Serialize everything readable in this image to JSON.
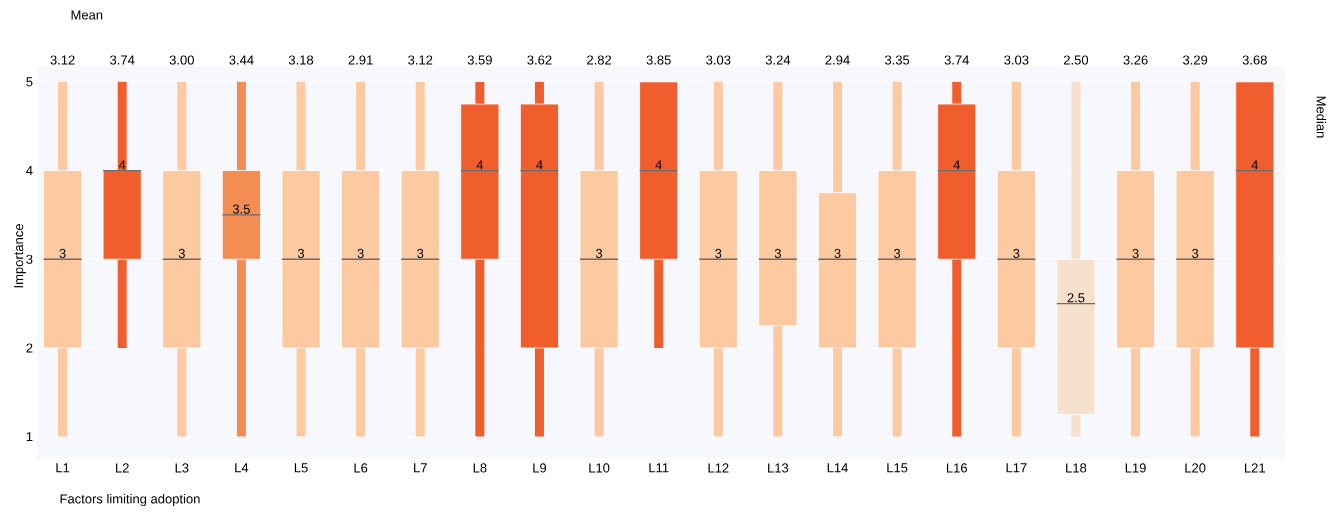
{
  "chart_data": {
    "type": "box",
    "xlabel": "Factors limiting adoption",
    "ylabel": "Importance",
    "annotations": [
      "Mean",
      "Median",
      {
        "text": "3",
        "x": "L1",
        "y": 3
      },
      {
        "text": "4",
        "x": "L2",
        "y": 4
      },
      {
        "text": "3",
        "x": "L3",
        "y": 3
      },
      {
        "text": "3.5",
        "x": "L4",
        "y": 3.5
      },
      {
        "text": "3",
        "x": "L5",
        "y": 3
      },
      {
        "text": "3",
        "x": "L6",
        "y": 3
      },
      {
        "text": "3",
        "x": "L7",
        "y": 3
      },
      {
        "text": "4",
        "x": "L8",
        "y": 4
      },
      {
        "text": "4",
        "x": "L9",
        "y": 4
      },
      {
        "text": "3",
        "x": "L10",
        "y": 3
      },
      {
        "text": "4",
        "x": "L11",
        "y": 4
      },
      {
        "text": "3",
        "x": "L12",
        "y": 3
      },
      {
        "text": "3",
        "x": "L13",
        "y": 3
      },
      {
        "text": "3",
        "x": "L14",
        "y": 3
      },
      {
        "text": "3",
        "x": "L15",
        "y": 3
      },
      {
        "text": "4",
        "x": "L16",
        "y": 4
      },
      {
        "text": "3",
        "x": "L17",
        "y": 3
      },
      {
        "text": "2.5",
        "x": "L18",
        "y": 2.5
      },
      {
        "text": "3",
        "x": "L19",
        "y": 3
      },
      {
        "text": "3",
        "x": "L20",
        "y": 3
      },
      {
        "text": "4",
        "x": "L21",
        "y": 4
      }
    ],
    "categories": [
      "L1",
      "L2",
      "L3",
      "L4",
      "L5",
      "L6",
      "L7",
      "L8",
      "L9",
      "L10",
      "L11",
      "L12",
      "L13",
      "L14",
      "L15",
      "L16",
      "L17",
      "L18",
      "L19",
      "L20",
      "L21"
    ],
    "boxes": [
      {
        "low": 1,
        "q1": 2,
        "median": 3,
        "q3": 4,
        "high": 5
      },
      {
        "low": 2,
        "q1": 3,
        "median": 4,
        "q3": 4,
        "high": 5
      },
      {
        "low": 1,
        "q1": 2,
        "median": 3,
        "q3": 4,
        "high": 5
      },
      {
        "low": 1,
        "q1": 3,
        "median": 3.5,
        "q3": 4,
        "high": 5
      },
      {
        "low": 1,
        "q1": 2,
        "median": 3,
        "q3": 4,
        "high": 5
      },
      {
        "low": 1,
        "q1": 2,
        "median": 3,
        "q3": 4,
        "high": 5
      },
      {
        "low": 1,
        "q1": 2,
        "median": 3,
        "q3": 4,
        "high": 5
      },
      {
        "low": 1,
        "q1": 3,
        "median": 4,
        "q3": 4.75,
        "high": 5
      },
      {
        "low": 1,
        "q1": 2,
        "median": 4,
        "q3": 4.75,
        "high": 5
      },
      {
        "low": 1,
        "q1": 2,
        "median": 3,
        "q3": 4,
        "high": 5
      },
      {
        "low": 2,
        "q1": 3,
        "median": 4,
        "q3": 5,
        "high": 5
      },
      {
        "low": 1,
        "q1": 2,
        "median": 3,
        "q3": 4,
        "high": 5
      },
      {
        "low": 1,
        "q1": 2.25,
        "median": 3,
        "q3": 4,
        "high": 5
      },
      {
        "low": 1,
        "q1": 2,
        "median": 3,
        "q3": 3.75,
        "high": 5
      },
      {
        "low": 1,
        "q1": 2,
        "median": 3,
        "q3": 4,
        "high": 5
      },
      {
        "low": 1,
        "q1": 3,
        "median": 4,
        "q3": 4.75,
        "high": 5
      },
      {
        "low": 1,
        "q1": 2,
        "median": 3,
        "q3": 4,
        "high": 5
      },
      {
        "low": 1,
        "q1": 1.25,
        "median": 2.5,
        "q3": 3,
        "high": 5
      },
      {
        "low": 1,
        "q1": 2,
        "median": 3,
        "q3": 4,
        "high": 5
      },
      {
        "low": 1,
        "q1": 2,
        "median": 3,
        "q3": 4,
        "high": 5
      },
      {
        "low": 1,
        "q1": 2,
        "median": 4,
        "q3": 5,
        "high": 5
      }
    ],
    "colors": [
      "#fcc9a0",
      "#f05e2e",
      "#fcc9a0",
      "#f48d54",
      "#fcc9a0",
      "#fcc9a0",
      "#fcc9a0",
      "#f05e2e",
      "#f05e2e",
      "#fcc9a0",
      "#f05e2e",
      "#fcc9a0",
      "#fcc9a0",
      "#fcc9a0",
      "#fcc9a0",
      "#f05e2e",
      "#fcc9a0",
      "#f6e1cd",
      "#fcc9a0",
      "#fcc9a0",
      "#f05e2e"
    ],
    "value_labels": [
      "3.12",
      "3.74",
      "3.00",
      "3.44",
      "3.18",
      "2.91",
      "3.12",
      "3.59",
      "3.62",
      "2.82",
      "3.85",
      "3.03",
      "3.24",
      "2.94",
      "3.35",
      "3.74",
      "3.03",
      "2.50",
      "3.26",
      "3.29",
      "3.68"
    ],
    "ylim": [
      0.75,
      5.17
    ],
    "yticks": [
      1,
      2,
      3,
      4,
      5
    ],
    "grid": "y"
  }
}
